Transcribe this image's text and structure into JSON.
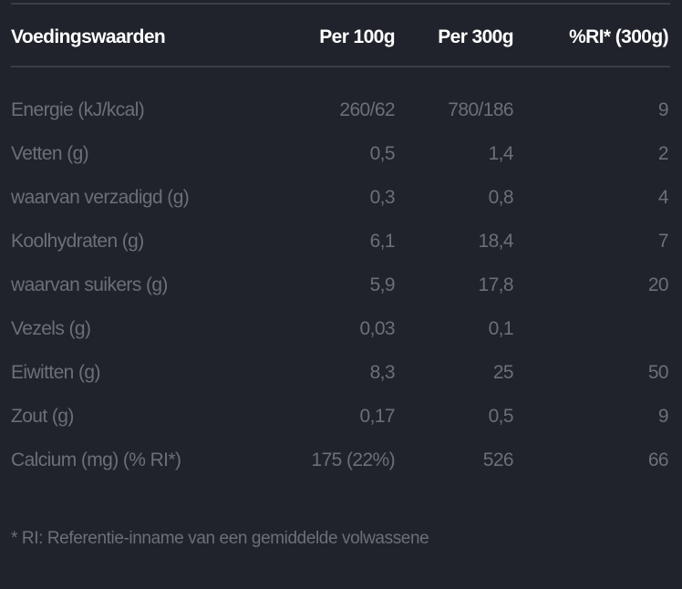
{
  "table": {
    "headers": [
      "Voedingswaarden",
      "Per 100g",
      "Per 300g",
      "%RI* (300g)"
    ],
    "rows": [
      [
        "Energie (kJ/kcal)",
        "260/62",
        "780/186",
        "9"
      ],
      [
        "Vetten (g)",
        "0,5",
        "1,4",
        "2"
      ],
      [
        "waarvan verzadigd (g)",
        "0,3",
        "0,8",
        "4"
      ],
      [
        "Koolhydraten (g)",
        "6,1",
        "18,4",
        "7"
      ],
      [
        "waarvan suikers (g)",
        "5,9",
        "17,8",
        "20"
      ],
      [
        "Vezels (g)",
        "0,03",
        "0,1",
        ""
      ],
      [
        "Eiwitten (g)",
        "8,3",
        "25",
        "50"
      ],
      [
        "Zout (g)",
        "0,17",
        "0,5",
        "9"
      ],
      [
        "Calcium (mg) (% RI*)",
        "175 (22%)",
        "526",
        "66"
      ]
    ]
  },
  "footnote": "* RI: Referentie-inname van een gemiddelde volwassene",
  "colors": {
    "background": "#20232b",
    "header_text": "#ffffff",
    "body_text": "#6c6f77",
    "divider": "#3a3d44"
  }
}
